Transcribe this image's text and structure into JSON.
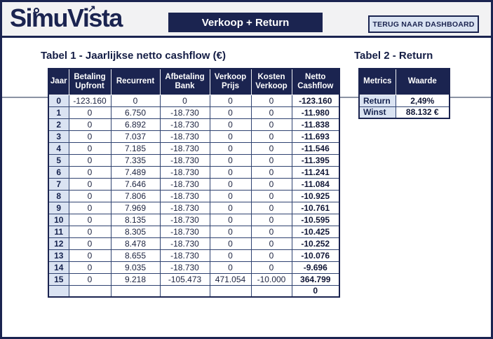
{
  "header": {
    "logo_text": "SimuVista",
    "banner_label": "Verkoop + Return",
    "back_button_label": "TERUG NAAR DASHBOARD"
  },
  "table1": {
    "title": "Tabel 1 - Jaarlijkse netto cashflow (€)",
    "columns": [
      "Jaar",
      "Betaling Upfront",
      "Recurrent",
      "Afbetaling Bank",
      "Verkoop Prijs",
      "Kosten Verkoop",
      "Netto Cashflow"
    ],
    "rows": [
      [
        "0",
        "-123.160",
        "0",
        "0",
        "0",
        "0",
        "-123.160"
      ],
      [
        "1",
        "0",
        "6.750",
        "-18.730",
        "0",
        "0",
        "-11.980"
      ],
      [
        "2",
        "0",
        "6.892",
        "-18.730",
        "0",
        "0",
        "-11.838"
      ],
      [
        "3",
        "0",
        "7.037",
        "-18.730",
        "0",
        "0",
        "-11.693"
      ],
      [
        "4",
        "0",
        "7.185",
        "-18.730",
        "0",
        "0",
        "-11.546"
      ],
      [
        "5",
        "0",
        "7.335",
        "-18.730",
        "0",
        "0",
        "-11.395"
      ],
      [
        "6",
        "0",
        "7.489",
        "-18.730",
        "0",
        "0",
        "-11.241"
      ],
      [
        "7",
        "0",
        "7.646",
        "-18.730",
        "0",
        "0",
        "-11.084"
      ],
      [
        "8",
        "0",
        "7.806",
        "-18.730",
        "0",
        "0",
        "-10.925"
      ],
      [
        "9",
        "0",
        "7.969",
        "-18.730",
        "0",
        "0",
        "-10.761"
      ],
      [
        "10",
        "0",
        "8.135",
        "-18.730",
        "0",
        "0",
        "-10.595"
      ],
      [
        "11",
        "0",
        "8.305",
        "-18.730",
        "0",
        "0",
        "-10.425"
      ],
      [
        "12",
        "0",
        "8.478",
        "-18.730",
        "0",
        "0",
        "-10.252"
      ],
      [
        "13",
        "0",
        "8.655",
        "-18.730",
        "0",
        "0",
        "-10.076"
      ],
      [
        "14",
        "0",
        "9.035",
        "-18.730",
        "0",
        "0",
        "-9.696"
      ],
      [
        "15",
        "0",
        "9.218",
        "-105.473",
        "471.054",
        "-10.000",
        "364.799"
      ],
      [
        "",
        "",
        "",
        "",
        "",
        "",
        "0"
      ]
    ]
  },
  "table2": {
    "title": "Tabel 2 -  Return",
    "columns": [
      "Metrics",
      "Waarde"
    ],
    "rows": [
      [
        "Return",
        "2,49%"
      ],
      [
        "Winst",
        "88.132 €"
      ]
    ]
  },
  "colors": {
    "navy": "#1b2450",
    "light_blue": "#dae3f2",
    "topbar_gray": "#f2f2f3",
    "grid_line": "#2f4270",
    "divider_gray": "#8b93a3"
  }
}
